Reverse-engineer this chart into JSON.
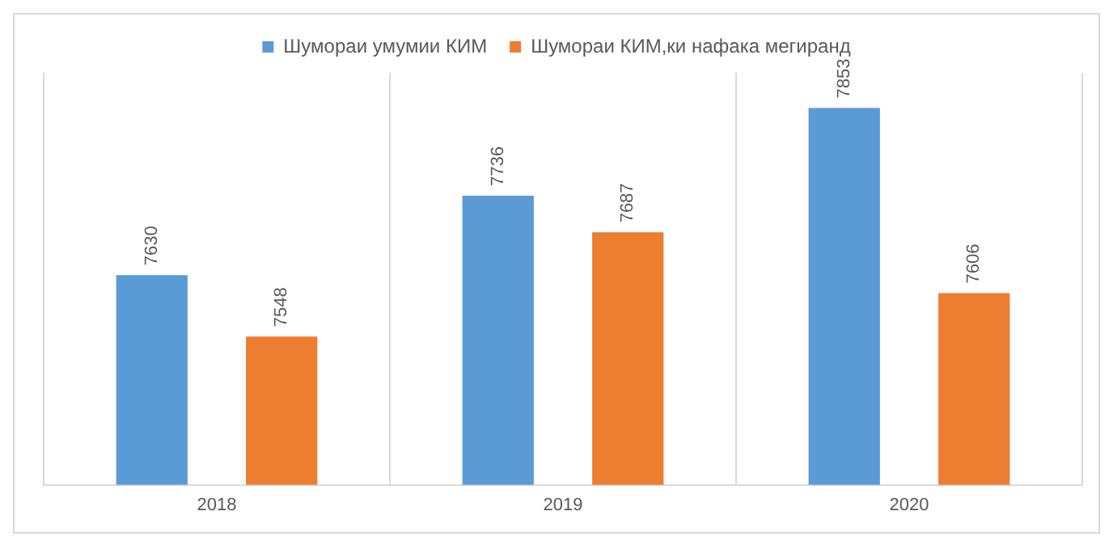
{
  "chart_data": {
    "type": "bar",
    "categories": [
      "2018",
      "2019",
      "2020"
    ],
    "series": [
      {
        "name": "Шумораи умумии КИМ",
        "color": "#5b9bd5",
        "values": [
          7630,
          7736,
          7853
        ]
      },
      {
        "name": "Шумораи КИМ,ки нафака мегиранд",
        "color": "#ed7d31",
        "values": [
          7548,
          7687,
          7606
        ]
      }
    ],
    "ylim": [
      7350,
      7900
    ],
    "tick_labels": "x",
    "grid": "x",
    "legend": "top",
    "data_labels": true
  }
}
